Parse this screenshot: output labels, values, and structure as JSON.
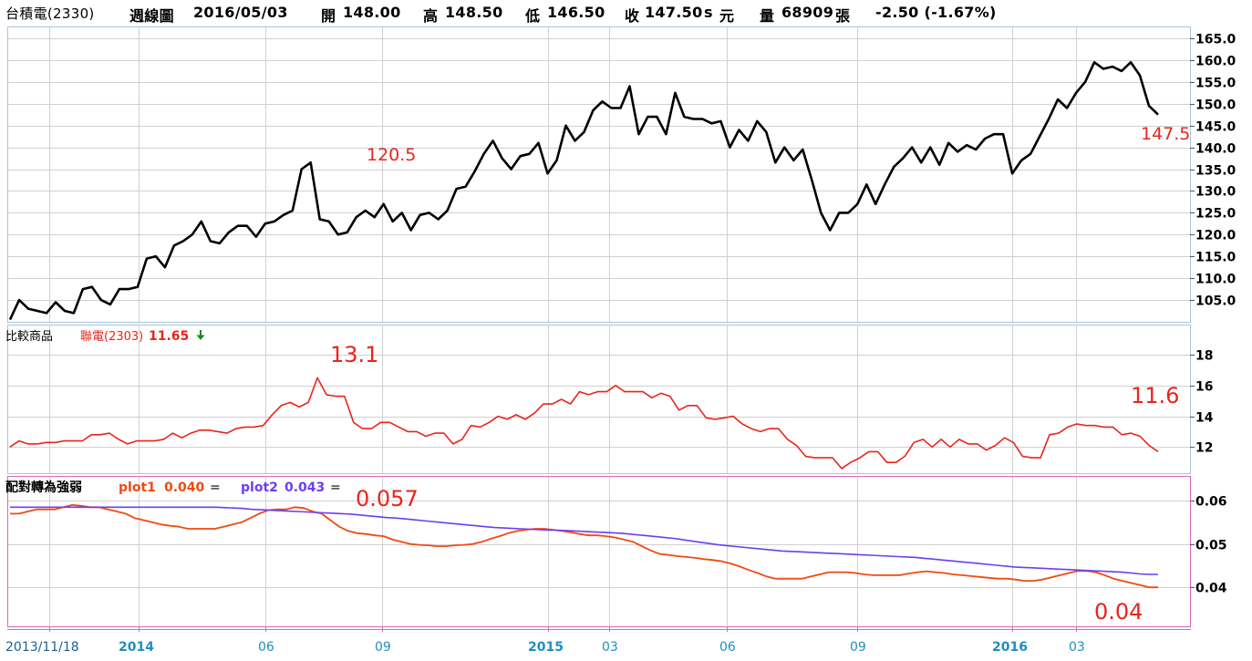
{
  "header": {
    "stock": "台積電(2330)",
    "period": "週線圖",
    "date": "2016/05/03",
    "open_label": "開",
    "open": "148.00",
    "high_label": "高",
    "high": "148.50",
    "low_label": "低",
    "low": "146.50",
    "close_label": "收",
    "close": "147.50",
    "unit_s": "s",
    "unit_yuan": "元",
    "volume_label": "量",
    "volume": "68909",
    "volume_unit": "張",
    "change": "-2.50 (-1.67%)"
  },
  "compare_panel": {
    "label": "比較商品",
    "symbol": "聯電(2303)",
    "value": "11.65"
  },
  "indicator_panel": {
    "label": "配對轉為強弱",
    "plot1_label": "plot1",
    "plot1_value": "0.040",
    "plot2_label": "plot2",
    "plot2_value": "0.043",
    "eq": "="
  },
  "annotations": {
    "main_mid": "120.5",
    "main_last": "147.5",
    "compare_peak": "13.1",
    "compare_last": "11.6",
    "indicator_peak": "0.057",
    "indicator_last": "0.04"
  },
  "colors": {
    "price": "#000000",
    "compare": "#e8251b",
    "plot1": "#f04a12",
    "plot2": "#6b3ff0",
    "annotation": "#e8251b",
    "axis_text": "#1f8fbf",
    "grid": "#d0d0d0",
    "panel_border": "#a8c4dc",
    "indicator_border": "#d966c2"
  },
  "chart_data": [
    {
      "type": "line",
      "title": "台積電(2330) 週線圖",
      "x_labels": [
        "2013/11/18",
        "2014",
        "06",
        "09",
        "2015",
        "03",
        "06",
        "09",
        "2016",
        "03"
      ],
      "y_ticks": [
        "105.0",
        "110.0",
        "115.0",
        "120.0",
        "125.0",
        "130.0",
        "135.0",
        "140.0",
        "145.0",
        "150.0",
        "155.0",
        "160.0",
        "165.0"
      ],
      "ylim": [
        100,
        167.5
      ],
      "grid": true,
      "series": [
        {
          "values": [
            100.5,
            105,
            103,
            102.5,
            102,
            104.5,
            102.5,
            102,
            107.5,
            108,
            105,
            104,
            107.5,
            107.5,
            108,
            114.5,
            115,
            112.5,
            117.5,
            118.5,
            120,
            123,
            118.5,
            118,
            120.5,
            122,
            122,
            119.5,
            122.5,
            123,
            124.5,
            125.5,
            135,
            136.5,
            123.5,
            123,
            120,
            120.5,
            124,
            125.5,
            124,
            127,
            123,
            125,
            121,
            124.5,
            125,
            123.5,
            125.5,
            130.5,
            131,
            134.5,
            138.5,
            141.5,
            137.5,
            135,
            138,
            138.5,
            141,
            134,
            137,
            145,
            141.5,
            143.5,
            148.5,
            150.5,
            149,
            149,
            154,
            143,
            147,
            147,
            143,
            152.5,
            147,
            146.5,
            146.5,
            145.5,
            146,
            140,
            144,
            141.5,
            146,
            143.5,
            136.5,
            140,
            137,
            139.5,
            132.5,
            125,
            121,
            125,
            125,
            127,
            131.5,
            127,
            131.5,
            135.5,
            137.5,
            140,
            136.5,
            140,
            136,
            141,
            139,
            140.5,
            139.5,
            142,
            143,
            143,
            134,
            137,
            138.5,
            142.5,
            146.5,
            151,
            149,
            152.5,
            155,
            159.5,
            158,
            158.5,
            157.5,
            159.5,
            156.5,
            149.5,
            147.5
          ]
        }
      ]
    },
    {
      "type": "line",
      "title": "比較商品 聯電(2303)",
      "y_ticks": [
        "12",
        "14",
        "16",
        "18"
      ],
      "ylim": [
        10.3,
        19.9
      ],
      "grid": true,
      "series": [
        {
          "values": [
            12,
            12.4,
            12.2,
            12.2,
            12.3,
            12.3,
            12.4,
            12.4,
            12.4,
            12.8,
            12.8,
            12.9,
            12.5,
            12.2,
            12.4,
            12.4,
            12.4,
            12.5,
            12.9,
            12.6,
            12.9,
            13.1,
            13.1,
            13,
            12.9,
            13.2,
            13.3,
            13.3,
            13.4,
            14.1,
            14.7,
            14.9,
            14.6,
            14.9,
            16.5,
            15.4,
            15.3,
            15.3,
            13.6,
            13.2,
            13.2,
            13.6,
            13.6,
            13.3,
            13,
            13,
            12.7,
            12.9,
            12.9,
            12.2,
            12.5,
            13.4,
            13.3,
            13.6,
            14,
            13.8,
            14.1,
            13.8,
            14.2,
            14.8,
            14.8,
            15.1,
            14.8,
            15.6,
            15.4,
            15.6,
            15.6,
            16,
            15.6,
            15.6,
            15.6,
            15.2,
            15.5,
            15.3,
            14.4,
            14.7,
            14.7,
            13.9,
            13.8,
            13.9,
            14,
            13.5,
            13.2,
            13,
            13.2,
            13.2,
            12.5,
            12.1,
            11.4,
            11.3,
            11.3,
            11.3,
            10.6,
            11,
            11.3,
            11.7,
            11.7,
            11,
            11,
            11.4,
            12.3,
            12.5,
            12,
            12.5,
            12,
            12.5,
            12.2,
            12.2,
            11.8,
            12.1,
            12.6,
            12.3,
            11.4,
            11.3,
            11.3,
            12.8,
            12.9,
            13.3,
            13.5,
            13.4,
            13.4,
            13.3,
            13.3,
            12.8,
            12.9,
            12.7,
            12.1,
            11.7
          ]
        }
      ]
    },
    {
      "type": "line",
      "title": "配對轉為強弱",
      "y_ticks": [
        "0.04",
        "0.05",
        "0.06"
      ],
      "ylim": [
        0.031,
        0.0655
      ],
      "grid": true,
      "series": [
        {
          "name": "plot1",
          "values": [
            0.057,
            0.057,
            0.0575,
            0.058,
            0.058,
            0.058,
            0.0585,
            0.059,
            0.0588,
            0.0585,
            0.0585,
            0.058,
            0.0575,
            0.057,
            0.056,
            0.0555,
            0.055,
            0.0545,
            0.0542,
            0.054,
            0.0535,
            0.0535,
            0.0535,
            0.0535,
            0.054,
            0.0545,
            0.055,
            0.056,
            0.057,
            0.0578,
            0.058,
            0.058,
            0.0585,
            0.0583,
            0.0575,
            0.057,
            0.0555,
            0.054,
            0.053,
            0.0525,
            0.0523,
            0.052,
            0.0518,
            0.051,
            0.0505,
            0.05,
            0.0498,
            0.0497,
            0.0495,
            0.0495,
            0.0497,
            0.0498,
            0.05,
            0.0505,
            0.0512,
            0.0518,
            0.0525,
            0.053,
            0.0533,
            0.0535,
            0.0535,
            0.0533,
            0.053,
            0.0527,
            0.0523,
            0.052,
            0.052,
            0.0518,
            0.0515,
            0.051,
            0.0505,
            0.0495,
            0.0485,
            0.0477,
            0.0475,
            0.0472,
            0.047,
            0.0468,
            0.0465,
            0.0463,
            0.046,
            0.0455,
            0.0448,
            0.044,
            0.0433,
            0.0425,
            0.042,
            0.042,
            0.042,
            0.042,
            0.0425,
            0.043,
            0.0435,
            0.0435,
            0.0435,
            0.0433,
            0.043,
            0.0428,
            0.0428,
            0.0428,
            0.0428,
            0.0432,
            0.0435,
            0.0437,
            0.0435,
            0.0433,
            0.043,
            0.0428,
            0.0426,
            0.0424,
            0.0422,
            0.042,
            0.042,
            0.0418,
            0.0415,
            0.0415,
            0.0418,
            0.0423,
            0.0428,
            0.0433,
            0.0438,
            0.0438,
            0.0435,
            0.0428,
            0.042,
            0.0415,
            0.041,
            0.0405,
            0.04,
            0.04
          ]
        },
        {
          "name": "plot2",
          "values": [
            0.0585,
            0.0585,
            0.0585,
            0.0585,
            0.0585,
            0.0585,
            0.0585,
            0.0585,
            0.0585,
            0.0585,
            0.0585,
            0.0585,
            0.0585,
            0.0585,
            0.0585,
            0.0585,
            0.0585,
            0.0585,
            0.0585,
            0.0585,
            0.0585,
            0.0585,
            0.0585,
            0.0585,
            0.0584,
            0.0583,
            0.0582,
            0.058,
            0.0579,
            0.0578,
            0.0577,
            0.0576,
            0.0575,
            0.0574,
            0.0573,
            0.0572,
            0.0571,
            0.057,
            0.0569,
            0.0567,
            0.0565,
            0.0563,
            0.0561,
            0.056,
            0.0558,
            0.0556,
            0.0554,
            0.0552,
            0.055,
            0.0548,
            0.0546,
            0.0544,
            0.0542,
            0.054,
            0.0538,
            0.0537,
            0.0536,
            0.0535,
            0.0534,
            0.0533,
            0.0532,
            0.0532,
            0.0531,
            0.053,
            0.0529,
            0.0528,
            0.0527,
            0.0526,
            0.0525,
            0.0523,
            0.0521,
            0.0519,
            0.0517,
            0.0515,
            0.0513,
            0.051,
            0.0507,
            0.0504,
            0.0501,
            0.0498,
            0.0496,
            0.0494,
            0.0492,
            0.049,
            0.0488,
            0.0486,
            0.0484,
            0.0483,
            0.0482,
            0.0481,
            0.048,
            0.0479,
            0.0478,
            0.0477,
            0.0476,
            0.0475,
            0.0474,
            0.0473,
            0.0472,
            0.0471,
            0.047,
            0.0469,
            0.0467,
            0.0465,
            0.0463,
            0.0461,
            0.0459,
            0.0457,
            0.0455,
            0.0453,
            0.0451,
            0.0449,
            0.0447,
            0.0446,
            0.0445,
            0.0444,
            0.0443,
            0.0442,
            0.0441,
            0.044,
            0.0439,
            0.0438,
            0.0437,
            0.0436,
            0.0435,
            0.0433,
            0.0431,
            0.043,
            0.043
          ]
        }
      ]
    }
  ]
}
